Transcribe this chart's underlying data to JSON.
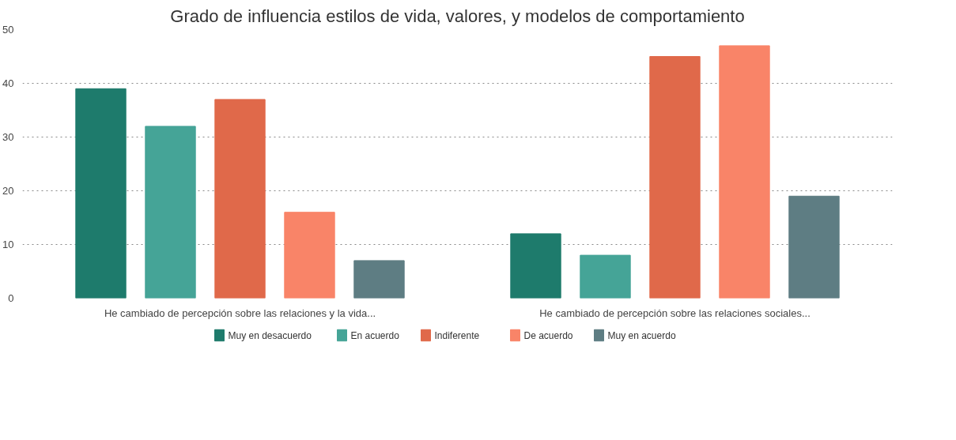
{
  "chart_data": {
    "type": "bar",
    "title": "Grado de influencia estilos de vida, valores, y modelos de comportamiento",
    "categories": [
      "He cambiado de percepción sobre las relaciones y la vida...",
      "He cambiado de percepción sobre las relaciones sociales..."
    ],
    "series": [
      {
        "name": "Muy en desacuerdo",
        "color": "#1e7b6c",
        "values": [
          39,
          12
        ]
      },
      {
        "name": "En acuerdo",
        "color": "#45a497",
        "values": [
          32,
          8
        ]
      },
      {
        "name": "Indiferente",
        "color": "#e0694a",
        "values": [
          37,
          45
        ]
      },
      {
        "name": "De acuerdo",
        "color": "#f98468",
        "values": [
          16,
          47
        ]
      },
      {
        "name": "Muy en acuerdo",
        "color": "#5e7d83",
        "values": [
          7,
          19
        ]
      }
    ],
    "ylim": [
      0,
      50
    ],
    "yticks": [
      0,
      10,
      20,
      30,
      40,
      50
    ],
    "grid": "y",
    "legend": "bottom"
  }
}
